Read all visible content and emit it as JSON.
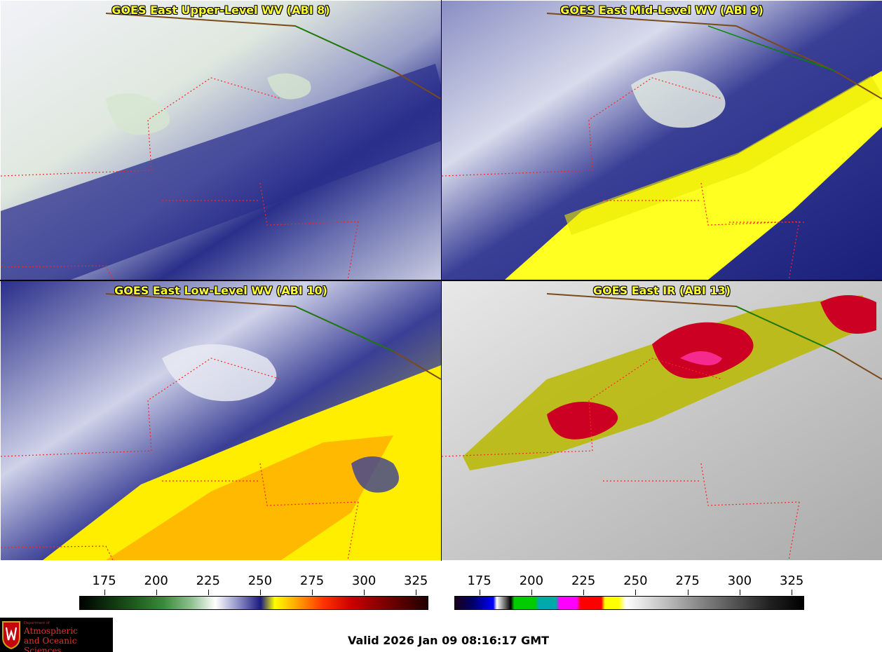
{
  "panels": [
    {
      "title": "GOES East Upper-Level WV (ABI 8)"
    },
    {
      "title": "GOES East Mid-Level WV (ABI 9)"
    },
    {
      "title": "GOES East Low-Level WV (ABI 10)"
    },
    {
      "title": "GOES East IR (ABI 13)"
    }
  ],
  "colorbars": {
    "left": {
      "ticks": [
        "175",
        "200",
        "225",
        "250",
        "275",
        "300",
        "325"
      ],
      "range": [
        163,
        331
      ]
    },
    "right": {
      "ticks": [
        "175",
        "200",
        "225",
        "250",
        "275",
        "300",
        "325"
      ],
      "range": [
        163,
        331
      ]
    }
  },
  "logo": {
    "dept": "Department of",
    "line1": "Atmospheric",
    "line2": "and Oceanic Sciences"
  },
  "valid_time": "Valid 2026 Jan 09 08:16:17 GMT",
  "colors": {
    "title_text": "#ffff33",
    "border_state": "#ff2222",
    "border_country": "#008800",
    "coast": "#7a4a1a"
  }
}
